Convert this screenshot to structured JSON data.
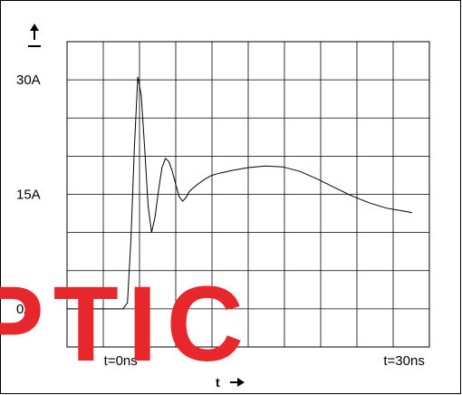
{
  "chart_data": {
    "type": "line",
    "title": "",
    "xlabel": "t",
    "ylabel": "",
    "x_tick_labels": [
      {
        "x": 0,
        "label": "t=0ns"
      },
      {
        "x": 30,
        "label": "t=30ns"
      }
    ],
    "y_tick_labels": [
      {
        "y": 0,
        "label": "0A"
      },
      {
        "y": 15,
        "label": "15A"
      },
      {
        "y": 30,
        "label": "30A"
      }
    ],
    "xlim": [
      -7,
      35
    ],
    "ylim": [
      -5,
      35
    ],
    "grid": true,
    "series": [
      {
        "x": [
          -7,
          -3.5,
          -0.5,
          0,
          0.4,
          0.8,
          1.2,
          1.6,
          2.0,
          2.4,
          2.8,
          3.2,
          3.6,
          4.0,
          4.4,
          4.8,
          5.2,
          5.6,
          6.0,
          6.4,
          6.8,
          7.2,
          7.6,
          8.0,
          8.5,
          9.0,
          9.6,
          10.4,
          11.2,
          12.0,
          14.0,
          16.0,
          18.0,
          20.0,
          22.0,
          24.0,
          26.0,
          28.0,
          30.0,
          32.0,
          33.0
        ],
        "y": [
          0,
          0,
          0,
          0.8,
          9,
          21,
          30.4,
          28,
          21,
          13.5,
          10,
          12,
          15.5,
          18.5,
          19.7,
          19.3,
          18,
          16.3,
          14.7,
          14.1,
          14.6,
          15.4,
          15.8,
          16.2,
          16.6,
          17.0,
          17.4,
          17.7,
          17.9,
          18.1,
          18.5,
          18.7,
          18.6,
          18.0,
          17.0,
          15.9,
          14.8,
          13.9,
          13.2,
          12.8,
          12.6
        ]
      }
    ]
  },
  "y_axis_arrow": "up-arrow-icon",
  "x_axis_arrow": "right-arrow-icon",
  "watermark": {
    "text": "PTIC",
    "color": "#e8272c"
  }
}
